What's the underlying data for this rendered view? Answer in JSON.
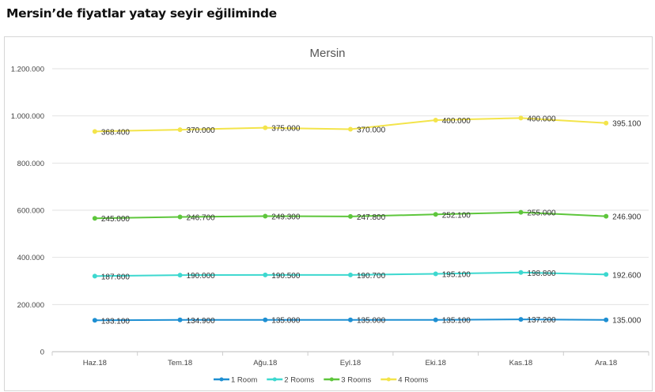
{
  "headline": "Mersin’de fiyatlar yatay seyir eğiliminde",
  "chart_data": {
    "type": "line",
    "stacked": true,
    "title": "Mersin",
    "xlabel": "",
    "ylabel": "",
    "ylim": [
      0,
      1200000
    ],
    "yticks": [
      0,
      200000,
      400000,
      600000,
      800000,
      1000000,
      1200000
    ],
    "ytick_labels": [
      "0",
      "200.000",
      "400.000",
      "600.000",
      "800.000",
      "1.000.000",
      "1.200.000"
    ],
    "categories": [
      "Haz.18",
      "Tem.18",
      "Ağu.18",
      "Eyl.18",
      "Eki.18",
      "Kas.18",
      "Ara.18"
    ],
    "grid": true,
    "legend": "bottom",
    "series": [
      {
        "name": "1 Room",
        "color": "#1e8fd2",
        "values": [
          133100,
          134900,
          135000,
          135000,
          135100,
          137200,
          135000
        ],
        "labels": [
          "133.100",
          "134.900",
          "135.000",
          "135.000",
          "135.100",
          "137.200",
          "135.000"
        ]
      },
      {
        "name": "2 Rooms",
        "color": "#3dd8cf",
        "values": [
          187600,
          190000,
          190500,
          190700,
          195100,
          198800,
          192600
        ],
        "labels": [
          "187.600",
          "190.000",
          "190.500",
          "190.700",
          "195.100",
          "198.800",
          "192.600"
        ]
      },
      {
        "name": "3 Rooms",
        "color": "#5ec63c",
        "values": [
          245000,
          246700,
          249300,
          247800,
          252100,
          255000,
          246900
        ],
        "labels": [
          "245.000",
          "246.700",
          "249.300",
          "247.800",
          "252.100",
          "255.000",
          "246.900"
        ]
      },
      {
        "name": "4 Rooms",
        "color": "#f3e44a",
        "values": [
          368400,
          370000,
          375000,
          370000,
          400000,
          400000,
          395100
        ],
        "labels": [
          "368.400",
          "370.000",
          "375.000",
          "370.000",
          "400.000",
          "400.000",
          "395.100"
        ]
      }
    ]
  }
}
